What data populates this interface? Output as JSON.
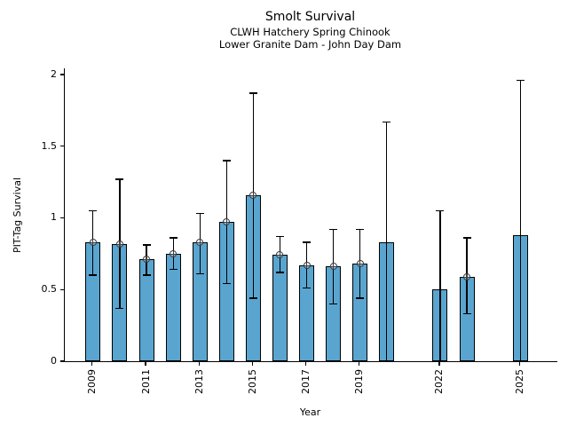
{
  "chart_data": {
    "type": "bar",
    "title": "Smolt Survival",
    "subtitle_line1": "CLWH Hatchery Spring Chinook",
    "subtitle_line2": "Lower Granite Dam - John Day Dam",
    "xlabel": "Year",
    "ylabel": "PIT-Tag Survival",
    "xlim": [
      2007.94,
      2026.39
    ],
    "ylim": [
      0,
      2.043
    ],
    "grid": false,
    "legend": "none",
    "bar_color": "#5AA5D0",
    "bar_edge_color": "#000000",
    "error_bar_color": "#000000",
    "marker_style": "open-circle",
    "yticks": [
      {
        "value": 0,
        "label": "0"
      },
      {
        "value": 0.5,
        "label": "0.5"
      },
      {
        "value": 1,
        "label": "1"
      },
      {
        "value": 1.5,
        "label": "1.5"
      },
      {
        "value": 2,
        "label": "2"
      }
    ],
    "xticks": [
      {
        "value": 2009,
        "label": "2009"
      },
      {
        "value": 2011,
        "label": "2011"
      },
      {
        "value": 2013,
        "label": "2013"
      },
      {
        "value": 2015,
        "label": "2015"
      },
      {
        "value": 2017,
        "label": "2017"
      },
      {
        "value": 2019,
        "label": "2019"
      },
      {
        "value": 2022,
        "label": "2022"
      },
      {
        "value": 2025,
        "label": "2025"
      }
    ],
    "bar_width_years": 0.56,
    "points": [
      {
        "year": 2009,
        "value": 0.83,
        "ci_low": 0.6,
        "ci_high": 1.05,
        "marker": true,
        "lower_cap": true
      },
      {
        "year": 2010,
        "value": 0.82,
        "ci_low": 0.37,
        "ci_high": 1.27,
        "marker": true,
        "lower_cap": true
      },
      {
        "year": 2011,
        "value": 0.71,
        "ci_low": 0.6,
        "ci_high": 0.81,
        "marker": true,
        "lower_cap": true
      },
      {
        "year": 2012,
        "value": 0.75,
        "ci_low": 0.64,
        "ci_high": 0.86,
        "marker": true,
        "lower_cap": true
      },
      {
        "year": 2013,
        "value": 0.83,
        "ci_low": 0.61,
        "ci_high": 1.03,
        "marker": true,
        "lower_cap": true
      },
      {
        "year": 2014,
        "value": 0.97,
        "ci_low": 0.54,
        "ci_high": 1.4,
        "marker": true,
        "lower_cap": true
      },
      {
        "year": 2015,
        "value": 1.16,
        "ci_low": 0.44,
        "ci_high": 1.87,
        "marker": true,
        "lower_cap": true
      },
      {
        "year": 2016,
        "value": 0.74,
        "ci_low": 0.62,
        "ci_high": 0.87,
        "marker": true,
        "lower_cap": true
      },
      {
        "year": 2017,
        "value": 0.67,
        "ci_low": 0.51,
        "ci_high": 0.83,
        "marker": true,
        "lower_cap": true
      },
      {
        "year": 2018,
        "value": 0.66,
        "ci_low": 0.4,
        "ci_high": 0.92,
        "marker": true,
        "lower_cap": true
      },
      {
        "year": 2019,
        "value": 0.68,
        "ci_low": 0.44,
        "ci_high": 0.92,
        "marker": true,
        "lower_cap": true
      },
      {
        "year": 2020,
        "value": 0.83,
        "ci_low": 0.0,
        "ci_high": 1.67,
        "marker": false,
        "lower_cap": false
      },
      {
        "year": 2022,
        "value": 0.5,
        "ci_low": 0.0,
        "ci_high": 1.05,
        "marker": false,
        "lower_cap": false
      },
      {
        "year": 2023,
        "value": 0.59,
        "ci_low": 0.33,
        "ci_high": 0.86,
        "marker": true,
        "lower_cap": true
      },
      {
        "year": 2025,
        "value": 0.88,
        "ci_low": 0.0,
        "ci_high": 1.96,
        "marker": false,
        "lower_cap": false
      }
    ]
  }
}
